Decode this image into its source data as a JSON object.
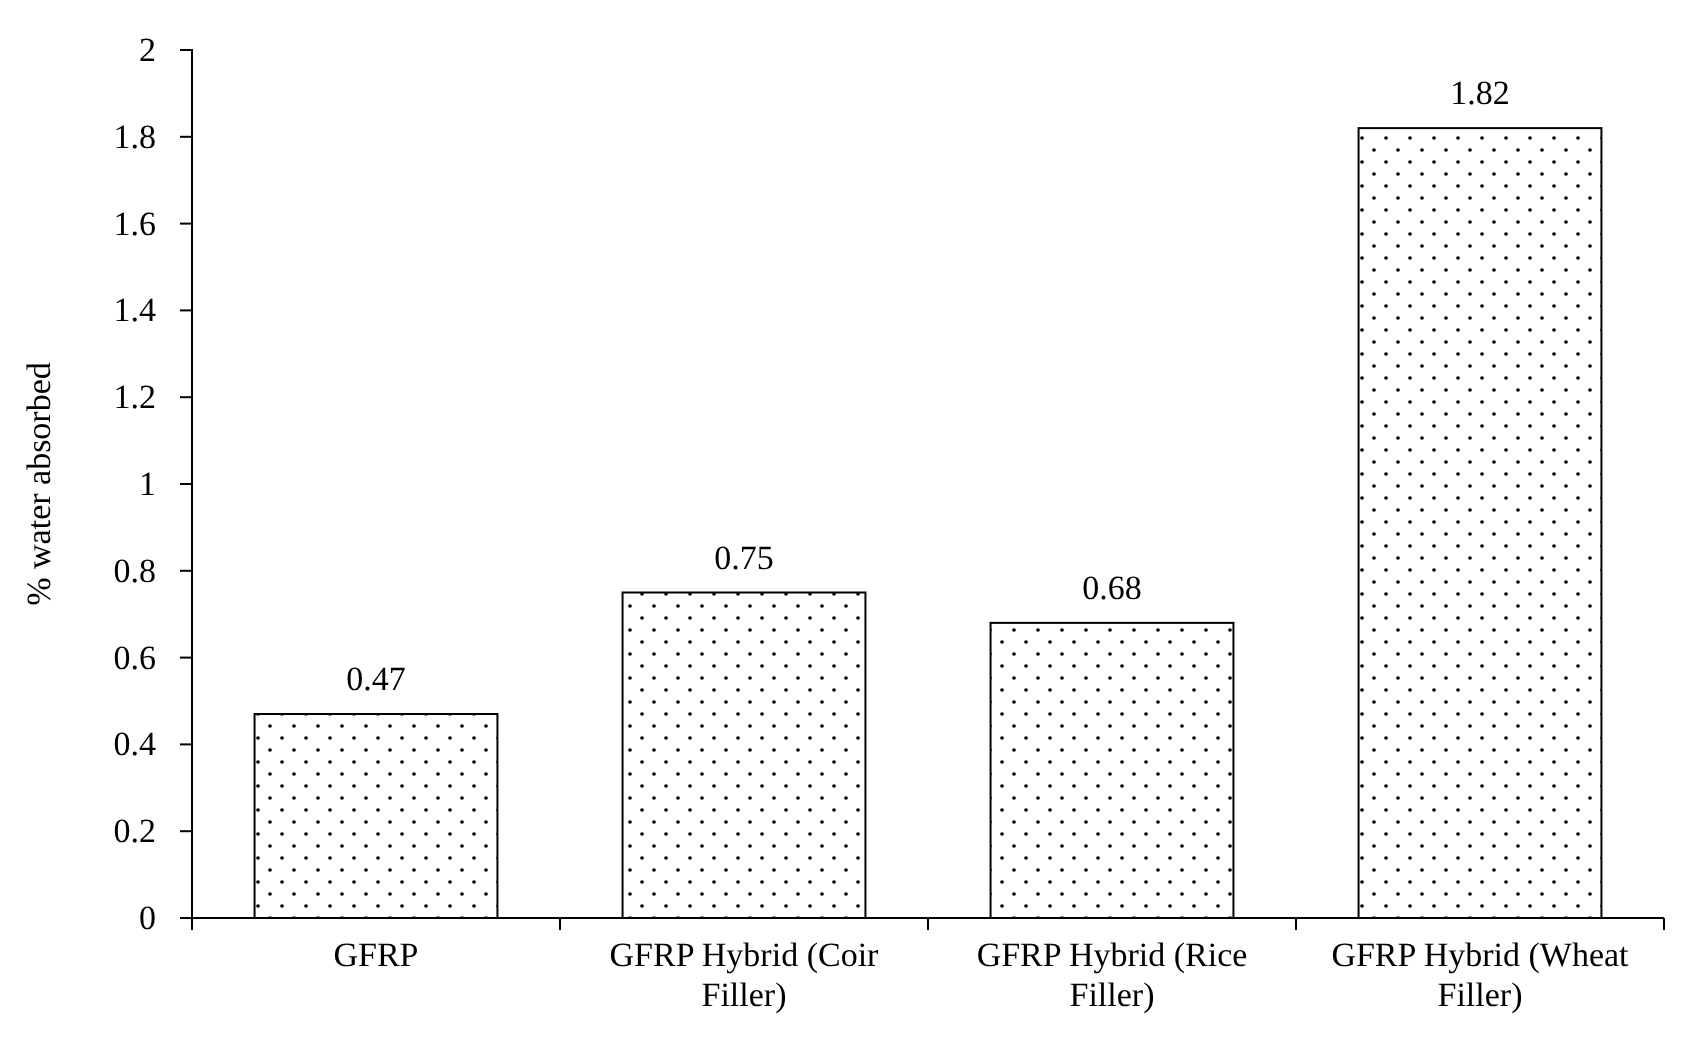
{
  "chart_data": {
    "type": "bar",
    "ylabel": "% water absorbed",
    "categories": [
      "GFRP",
      "GFRP Hybrid (Coir Filler)",
      "GFRP Hybrid (Rice Filler)",
      "GFRP Hybrid (Wheat Filler)"
    ],
    "values": [
      0.47,
      0.75,
      0.68,
      1.82
    ],
    "color": "#000000",
    "ylim": [
      0,
      2
    ],
    "yticks": [
      0,
      0.2,
      0.4,
      0.6,
      0.8,
      1,
      1.2,
      1.4,
      1.6,
      1.8,
      2
    ],
    "data_labels": true
  }
}
